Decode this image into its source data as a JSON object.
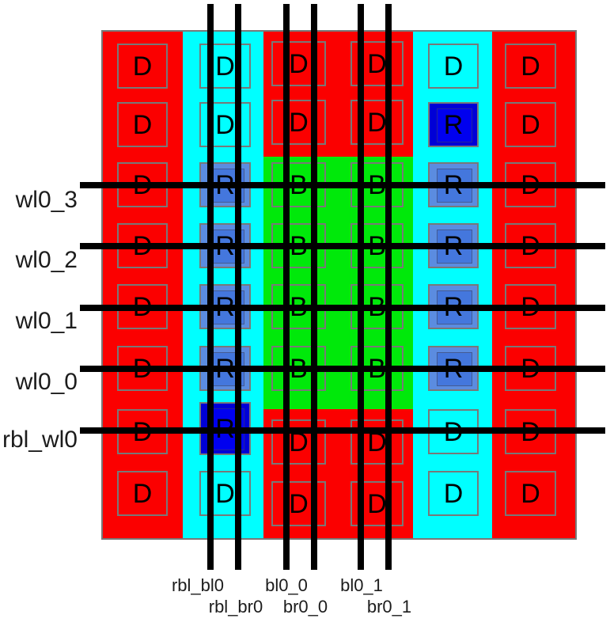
{
  "figure": {
    "description": "bitcell array layout view with dummy, replica and storage cells"
  },
  "wordlines": {
    "labels": [
      "wl0_3",
      "wl0_2",
      "wl0_1",
      "wl0_0",
      "rbl_wl0"
    ]
  },
  "bitlines": {
    "labels": [
      "rbl_bl0",
      "rbl_br0",
      "bl0_0",
      "br0_0",
      "bl0_1",
      "br0_1"
    ]
  },
  "cell_grid": {
    "rows": 8,
    "cols": 6,
    "letters": [
      [
        "D",
        "D",
        "D",
        "D",
        "D",
        "D"
      ],
      [
        "D",
        "D",
        "D",
        "D",
        "R",
        "D"
      ],
      [
        "D",
        "R",
        "B",
        "B",
        "R",
        "D"
      ],
      [
        "D",
        "R",
        "B",
        "B",
        "R",
        "D"
      ],
      [
        "D",
        "R",
        "B",
        "B",
        "R",
        "D"
      ],
      [
        "D",
        "R",
        "B",
        "B",
        "R",
        "D"
      ],
      [
        "D",
        "R",
        "D",
        "D",
        "D",
        "D"
      ],
      [
        "D",
        "D",
        "D",
        "D",
        "D",
        "D"
      ]
    ],
    "cell_types": [
      [
        "dummy-red",
        "dummy-cyan",
        "dummy-red",
        "dummy-red",
        "dummy-cyan",
        "dummy-red"
      ],
      [
        "dummy-red",
        "dummy-cyan",
        "dummy-red",
        "dummy-red",
        "replica-darkblue",
        "dummy-red"
      ],
      [
        "dummy-red",
        "replica-blue",
        "bitcell-green",
        "bitcell-green",
        "replica-blue",
        "dummy-red"
      ],
      [
        "dummy-red",
        "replica-blue",
        "bitcell-green",
        "bitcell-green",
        "replica-blue",
        "dummy-red"
      ],
      [
        "dummy-red",
        "replica-blue",
        "bitcell-green",
        "bitcell-green",
        "replica-blue",
        "dummy-red"
      ],
      [
        "dummy-red",
        "replica-blue",
        "bitcell-green",
        "bitcell-green",
        "replica-blue",
        "dummy-red"
      ],
      [
        "dummy-red",
        "replica-darkblue",
        "dummy-red",
        "dummy-red",
        "dummy-cyan",
        "dummy-red"
      ],
      [
        "dummy-red",
        "dummy-cyan",
        "dummy-red",
        "dummy-red",
        "dummy-cyan",
        "dummy-red"
      ]
    ]
  },
  "colors": {
    "dummy_red": "#fb0000",
    "replica_cyan": "#00ffff",
    "bitcell_green": "#00e90a",
    "replica_blue_outer": "#5b8ce0",
    "replica_blue_inner": "#4477dd",
    "rbl_blue_outer": "#0000d6",
    "rbl_blue_inner": "#0000ef",
    "outline_gray": "#787878",
    "wire_black": "#000000",
    "label_text": "#1c1c1c"
  }
}
